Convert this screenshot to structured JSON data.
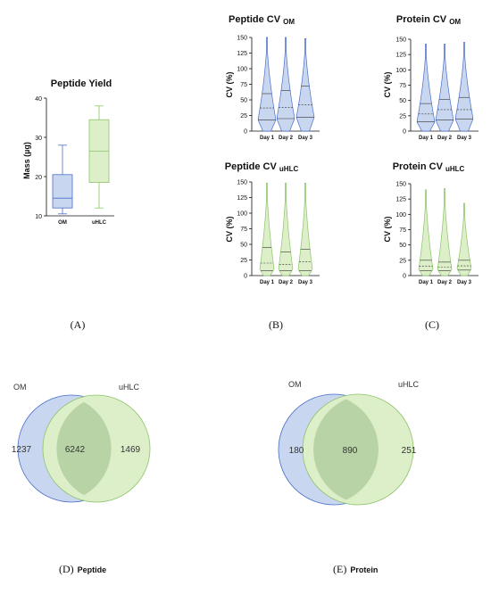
{
  "panel_labels": {
    "A": "(A)",
    "B": "(B)",
    "C": "(C)",
    "D": "(D)",
    "D_sub": "Peptide",
    "E": "(E)",
    "E_sub": "Protein"
  },
  "colors": {
    "om_stroke": "#4a6fc9",
    "om_fill": "#c9d6f0",
    "uhlc_stroke": "#8cc46a",
    "uhlc_fill": "#dcefc9",
    "venn_overlap": "#b8d4a6"
  },
  "chart_data": [
    {
      "id": "A",
      "type": "box",
      "title": "Peptide Yield",
      "ylabel": "Mass (µg)",
      "ylim": [
        10,
        40
      ],
      "yticks": [
        "10",
        "20",
        "30",
        "40"
      ],
      "categories": [
        "OM",
        "uHLC"
      ],
      "series": [
        {
          "name": "OM",
          "min": 10.5,
          "q1": 12.0,
          "median": 14.5,
          "q3": 20.5,
          "max": 28.0
        },
        {
          "name": "uHLC",
          "min": 12.0,
          "q1": 18.5,
          "median": 26.5,
          "q3": 34.5,
          "max": 38.0
        }
      ]
    },
    {
      "id": "B_top",
      "type": "violin",
      "title": "Peptide CV",
      "title_sub": "OM",
      "ylabel": "CV (%)",
      "ylim": [
        0,
        150
      ],
      "yticks": [
        "0",
        "25",
        "50",
        "75",
        "100",
        "125",
        "150"
      ],
      "categories": [
        "Day 1",
        "Day 2",
        "Day 3"
      ],
      "series": [
        {
          "name": "Day 1",
          "q1": 18,
          "median": 37,
          "q3": 60,
          "max": 150
        },
        {
          "name": "Day 2",
          "q1": 20,
          "median": 38,
          "q3": 65,
          "max": 150
        },
        {
          "name": "Day 3",
          "q1": 22,
          "median": 42,
          "q3": 72,
          "max": 148
        }
      ]
    },
    {
      "id": "C_top",
      "type": "violin",
      "title": "Protein CV",
      "title_sub": "OM",
      "ylabel": "CV (%)",
      "ylim": [
        0,
        150
      ],
      "yticks": [
        "0",
        "25",
        "50",
        "75",
        "100",
        "125",
        "150"
      ],
      "categories": [
        "Day 1",
        "Day 2",
        "Day 3"
      ],
      "series": [
        {
          "name": "Day 1",
          "q1": 15,
          "median": 28,
          "q3": 45,
          "max": 142
        },
        {
          "name": "Day 2",
          "q1": 18,
          "median": 35,
          "q3": 52,
          "max": 142
        },
        {
          "name": "Day 3",
          "q1": 20,
          "median": 35,
          "q3": 55,
          "max": 145
        }
      ]
    },
    {
      "id": "B_bottom",
      "type": "violin",
      "title": "Peptide CV",
      "title_sub": "uHLC",
      "ylabel": "CV (%)",
      "ylim": [
        0,
        150
      ],
      "yticks": [
        "0",
        "25",
        "50",
        "75",
        "100",
        "125",
        "150"
      ],
      "categories": [
        "Day 1",
        "Day 2",
        "Day 3"
      ],
      "series": [
        {
          "name": "Day 1",
          "q1": 8,
          "median": 20,
          "q3": 45,
          "max": 148
        },
        {
          "name": "Day 2",
          "q1": 8,
          "median": 18,
          "q3": 38,
          "max": 148
        },
        {
          "name": "Day 3",
          "q1": 8,
          "median": 22,
          "q3": 42,
          "max": 148
        }
      ]
    },
    {
      "id": "C_bottom",
      "type": "violin",
      "title": "Protein CV",
      "title_sub": "uHLC",
      "ylabel": "CV (%)",
      "ylim": [
        0,
        150
      ],
      "yticks": [
        "0",
        "25",
        "50",
        "75",
        "100",
        "125",
        "150"
      ],
      "categories": [
        "Day 1",
        "Day 2",
        "Day 3"
      ],
      "series": [
        {
          "name": "Day 1",
          "q1": 8,
          "median": 15,
          "q3": 25,
          "max": 140
        },
        {
          "name": "Day 2",
          "q1": 8,
          "median": 14,
          "q3": 22,
          "max": 142
        },
        {
          "name": "Day 3",
          "q1": 9,
          "median": 16,
          "q3": 25,
          "max": 118
        }
      ]
    },
    {
      "id": "D",
      "type": "venn",
      "sets": [
        "OM",
        "uHLC"
      ],
      "values": {
        "OM_only": "1237",
        "both": "6242",
        "uHLC_only": "1469"
      }
    },
    {
      "id": "E",
      "type": "venn",
      "sets": [
        "OM",
        "uHLC"
      ],
      "values": {
        "OM_only": "180",
        "both": "890",
        "uHLC_only": "251"
      }
    }
  ]
}
